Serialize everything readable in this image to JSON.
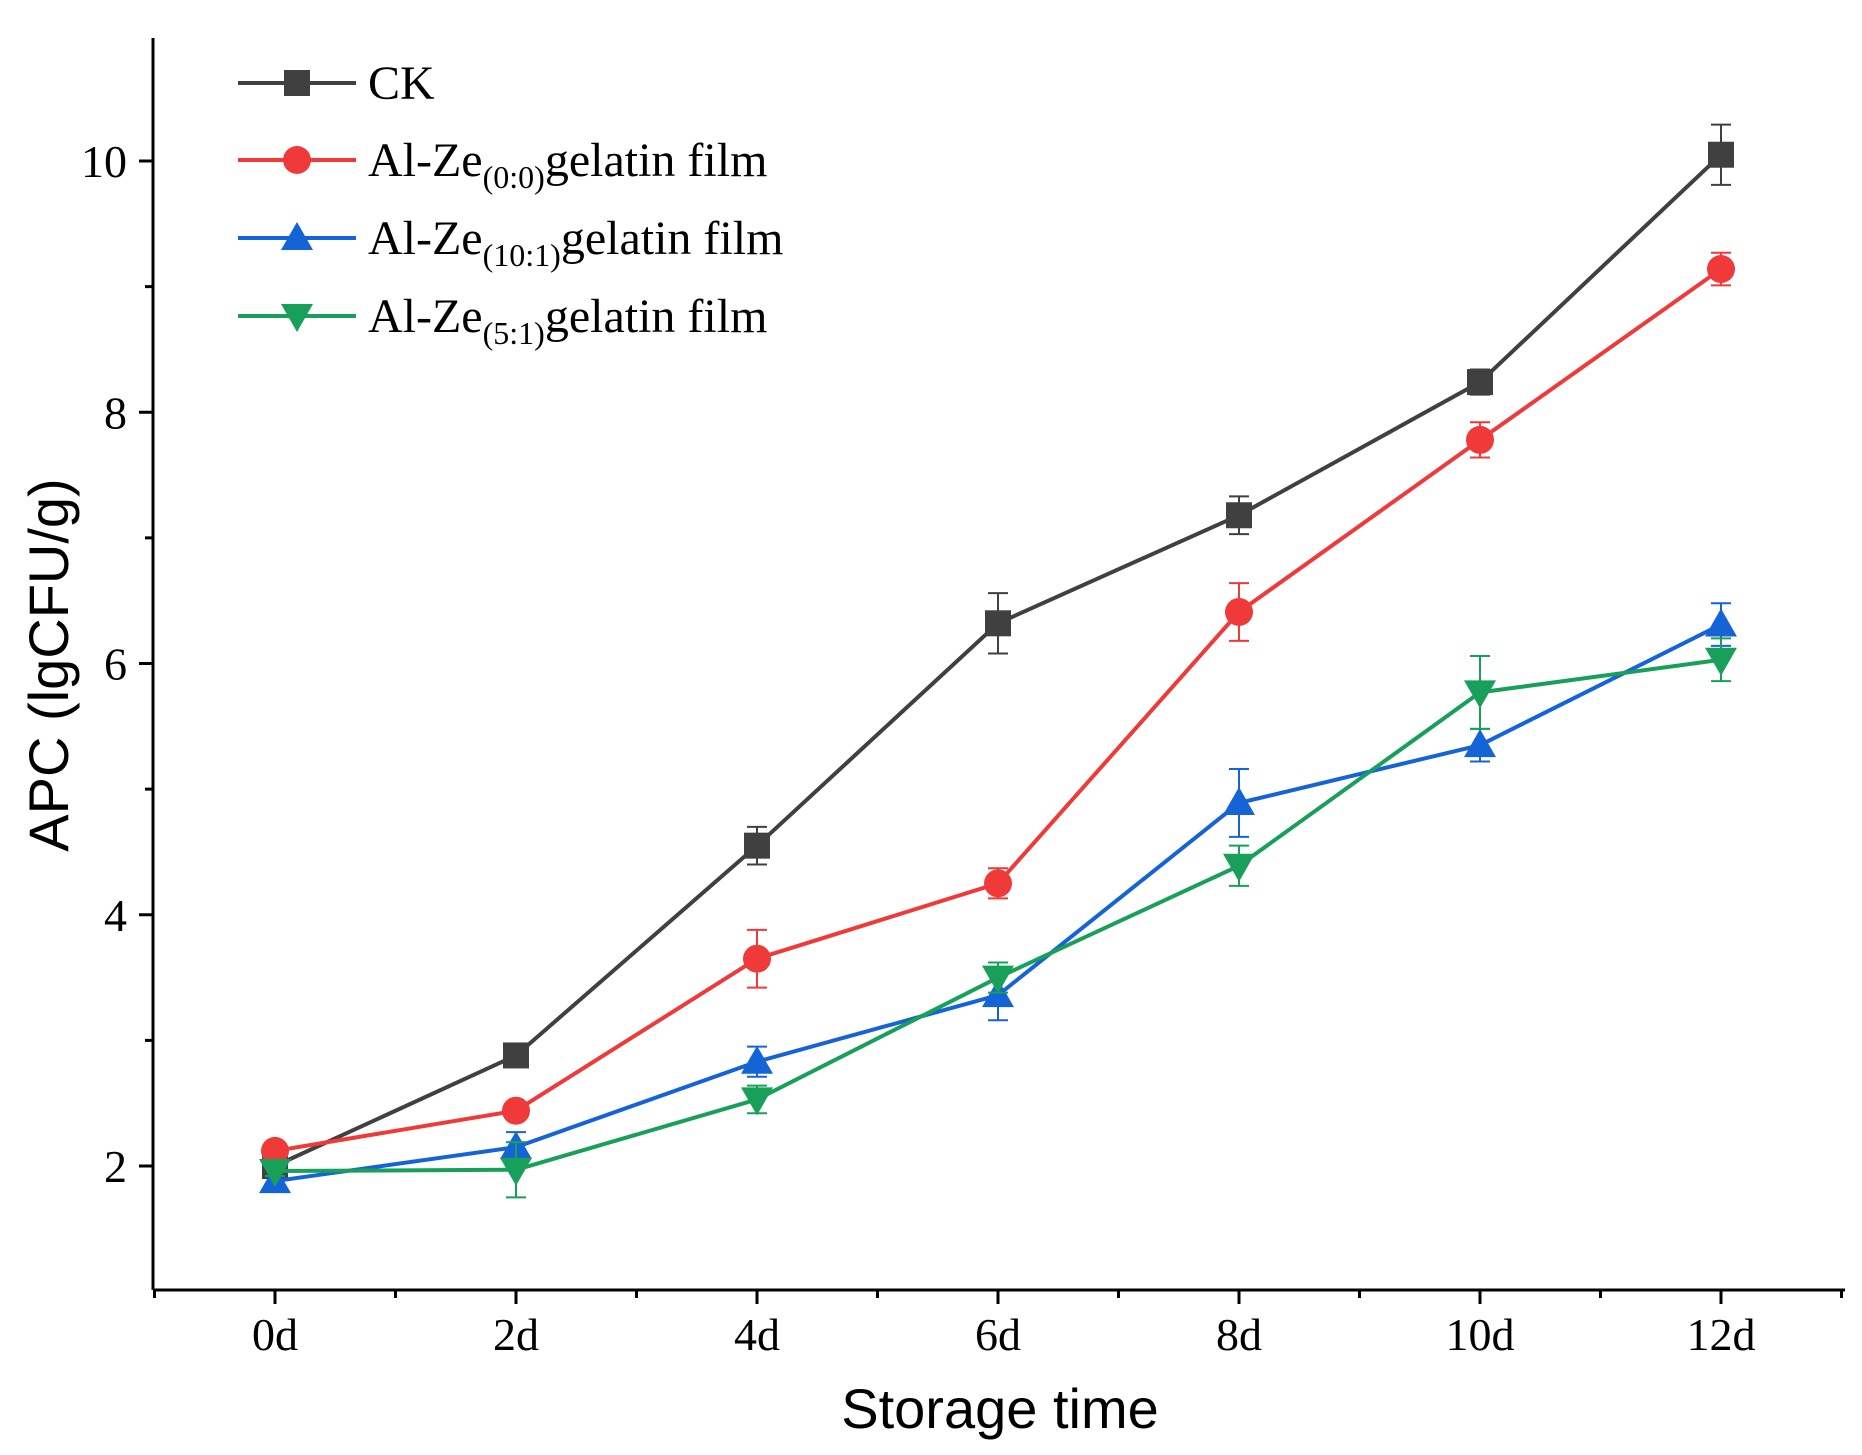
{
  "chart_data": {
    "type": "line",
    "title": "",
    "xlabel": "Storage time",
    "ylabel": "APC (lgCFU/g)",
    "categories": [
      "0d",
      "2d",
      "4d",
      "6d",
      "8d",
      "10d",
      "12d"
    ],
    "ylim": [
      1,
      11
    ],
    "yticks": [
      2,
      4,
      6,
      8,
      10
    ],
    "grid": false,
    "legend_position": "top-left",
    "series": [
      {
        "name": "CK",
        "legend_main": "CK",
        "legend_sub": "",
        "legend_tail": "",
        "color": "#404040",
        "marker": "square",
        "values": [
          2.0,
          2.88,
          4.55,
          6.32,
          7.18,
          8.24,
          10.05
        ],
        "errors": [
          0.05,
          0.05,
          0.15,
          0.24,
          0.15,
          0.1,
          0.24
        ]
      },
      {
        "name": "Al-Ze(0:0)gelatin film",
        "legend_main": "Al-Ze",
        "legend_sub": "(0:0)",
        "legend_tail": "gelatin film",
        "color": "#f03a3a",
        "marker": "circle",
        "values": [
          2.12,
          2.44,
          3.65,
          4.25,
          6.41,
          7.78,
          9.14
        ],
        "errors": [
          0.04,
          0.05,
          0.23,
          0.12,
          0.23,
          0.14,
          0.13
        ]
      },
      {
        "name": "Al-Ze(10:1)gelatin film",
        "legend_main": "Al-Ze",
        "legend_sub": "(10:1)",
        "legend_tail": "gelatin film",
        "color": "#1464d8",
        "marker": "triangle-up",
        "values": [
          1.88,
          2.15,
          2.83,
          3.36,
          4.89,
          5.35,
          6.31
        ],
        "errors": [
          0.04,
          0.12,
          0.12,
          0.2,
          0.27,
          0.13,
          0.17
        ]
      },
      {
        "name": "Al-Ze(5:1)gelatin film",
        "legend_main": "Al-Ze",
        "legend_sub": "(5:1)",
        "legend_tail": "gelatin film",
        "color": "#18a05a",
        "marker": "triangle-down",
        "values": [
          1.96,
          1.97,
          2.53,
          3.5,
          4.39,
          5.77,
          6.03
        ],
        "errors": [
          0.04,
          0.22,
          0.11,
          0.12,
          0.16,
          0.29,
          0.17
        ]
      }
    ]
  }
}
